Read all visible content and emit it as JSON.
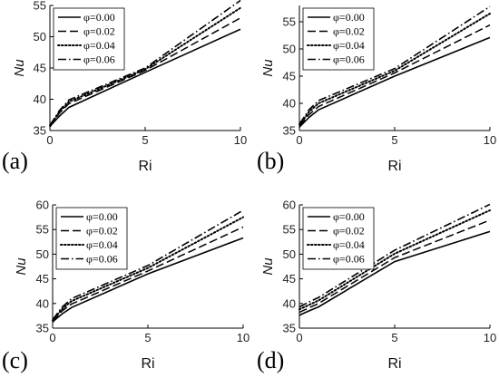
{
  "chart_data": [
    {
      "type": "line",
      "panel_label": "(a)",
      "xlabel": "Ri",
      "ylabel": "Nu",
      "xlim": [
        0,
        10
      ],
      "ylim": [
        35,
        55
      ],
      "xticks": [
        0,
        5,
        10
      ],
      "yticks": [
        35,
        40,
        45,
        50,
        55
      ],
      "legend_position": "top-left",
      "series": [
        {
          "name": "φ=0.00",
          "style": "solid",
          "x": [
            0,
            0.1,
            0.5,
            1,
            5,
            10
          ],
          "y": [
            35.6,
            36.0,
            37.3,
            38.7,
            44.3,
            51.2
          ]
        },
        {
          "name": "φ=0.02",
          "style": "dashed",
          "x": [
            0,
            0.1,
            0.5,
            1,
            5,
            10
          ],
          "y": [
            35.7,
            36.1,
            37.8,
            39.3,
            44.6,
            53.0
          ]
        },
        {
          "name": "φ=0.04",
          "style": "dotted",
          "x": [
            0,
            0.1,
            0.5,
            1,
            5,
            10
          ],
          "y": [
            35.8,
            36.2,
            38.0,
            39.6,
            44.8,
            54.6
          ]
        },
        {
          "name": "φ=0.06",
          "style": "dashdot",
          "x": [
            0,
            0.1,
            0.5,
            1,
            5,
            10
          ],
          "y": [
            35.9,
            36.3,
            38.2,
            39.9,
            45.0,
            55.8
          ]
        }
      ]
    },
    {
      "type": "line",
      "panel_label": "(b)",
      "xlabel": "Ri",
      "ylabel": "Nu",
      "xlim": [
        0,
        10
      ],
      "ylim": [
        35,
        58
      ],
      "xticks": [
        0,
        5,
        10
      ],
      "yticks": [
        35,
        40,
        45,
        50,
        55
      ],
      "legend_position": "top-left",
      "series": [
        {
          "name": "φ=0.00",
          "style": "solid",
          "x": [
            0,
            0.1,
            0.5,
            1,
            5,
            10
          ],
          "y": [
            35.6,
            36.0,
            37.4,
            38.8,
            45.0,
            52.1
          ]
        },
        {
          "name": "φ=0.02",
          "style": "dashed",
          "x": [
            0,
            0.1,
            0.5,
            1,
            5,
            10
          ],
          "y": [
            35.9,
            36.3,
            37.9,
            39.4,
            45.6,
            54.4
          ]
        },
        {
          "name": "φ=0.04",
          "style": "dotted",
          "x": [
            0,
            0.1,
            0.5,
            1,
            5,
            10
          ],
          "y": [
            36.1,
            36.5,
            38.4,
            40.0,
            46.0,
            56.5
          ]
        },
        {
          "name": "φ=0.06",
          "style": "dashdot",
          "x": [
            0,
            0.1,
            0.5,
            1,
            5,
            10
          ],
          "y": [
            36.3,
            36.7,
            38.8,
            40.5,
            46.4,
            57.8
          ]
        }
      ]
    },
    {
      "type": "line",
      "panel_label": "(c)",
      "xlabel": "Ri",
      "ylabel": "Nu",
      "xlim": [
        0,
        10
      ],
      "ylim": [
        35,
        60
      ],
      "xticks": [
        0,
        5,
        10
      ],
      "yticks": [
        35,
        40,
        45,
        50,
        55,
        60
      ],
      "legend_position": "top-left",
      "series": [
        {
          "name": "φ=0.00",
          "style": "solid",
          "x": [
            0,
            0.1,
            0.5,
            1,
            5,
            10
          ],
          "y": [
            36.2,
            36.6,
            37.9,
            39.2,
            46.0,
            53.3
          ]
        },
        {
          "name": "φ=0.02",
          "style": "dashed",
          "x": [
            0,
            0.1,
            0.5,
            1,
            5,
            10
          ],
          "y": [
            36.4,
            36.8,
            38.5,
            39.9,
            46.6,
            55.5
          ]
        },
        {
          "name": "φ=0.04",
          "style": "dotted",
          "x": [
            0,
            0.1,
            0.5,
            1,
            5,
            10
          ],
          "y": [
            36.6,
            37.0,
            38.9,
            40.5,
            47.2,
            57.5
          ]
        },
        {
          "name": "φ=0.06",
          "style": "dashdot",
          "x": [
            0,
            0.1,
            0.5,
            1,
            5,
            10
          ],
          "y": [
            36.8,
            37.2,
            39.3,
            41.0,
            47.7,
            58.9
          ]
        }
      ]
    },
    {
      "type": "line",
      "panel_label": "(d)",
      "xlabel": "Ri",
      "ylabel": "Nu",
      "xlim": [
        0,
        10
      ],
      "ylim": [
        35,
        60
      ],
      "xticks": [
        0,
        5,
        10
      ],
      "yticks": [
        35,
        40,
        45,
        50,
        55,
        60
      ],
      "legend_position": "top-left",
      "series": [
        {
          "name": "φ=0.00",
          "style": "solid",
          "x": [
            0,
            0.1,
            0.5,
            1,
            5,
            10
          ],
          "y": [
            37.6,
            37.8,
            38.5,
            39.3,
            48.5,
            54.6
          ]
        },
        {
          "name": "φ=0.02",
          "style": "dashed",
          "x": [
            0,
            0.1,
            0.5,
            1,
            5,
            10
          ],
          "y": [
            38.2,
            38.4,
            39.1,
            40.0,
            49.3,
            56.9
          ]
        },
        {
          "name": "φ=0.04",
          "style": "dotted",
          "x": [
            0,
            0.1,
            0.5,
            1,
            5,
            10
          ],
          "y": [
            38.8,
            39.0,
            39.7,
            40.6,
            50.1,
            58.9
          ]
        },
        {
          "name": "φ=0.06",
          "style": "dashdot",
          "x": [
            0,
            0.1,
            0.5,
            1,
            5,
            10
          ],
          "y": [
            39.3,
            39.5,
            40.3,
            41.2,
            50.8,
            60.1
          ]
        }
      ]
    }
  ]
}
